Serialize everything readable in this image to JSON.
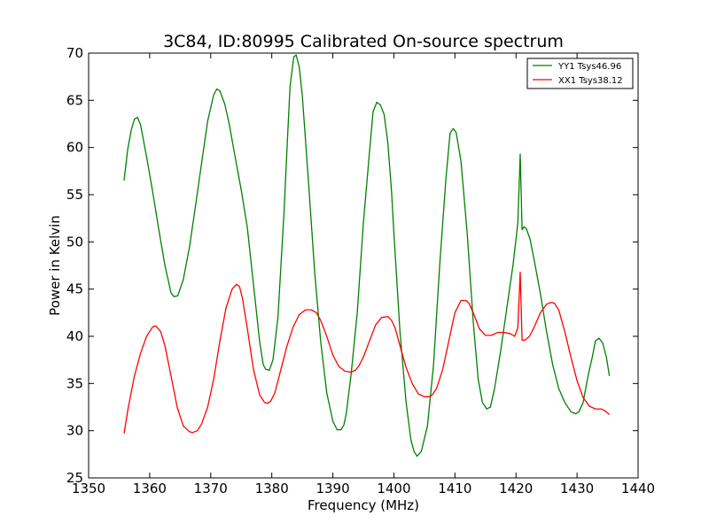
{
  "chart_data": {
    "type": "line",
    "title": "3C84, ID:80995 Calibrated On-source spectrum",
    "xlabel": "Frequency (MHz)",
    "ylabel": "Power in Kelvin",
    "xlim": [
      1350,
      1440
    ],
    "ylim": [
      25,
      70
    ],
    "xticks": [
      "1350",
      "1360",
      "1370",
      "1380",
      "1390",
      "1400",
      "1410",
      "1420",
      "1430",
      "1440"
    ],
    "yticks": [
      "25",
      "30",
      "35",
      "40",
      "45",
      "50",
      "55",
      "60",
      "65",
      "70"
    ],
    "grid": false,
    "legend_position": "upper-right",
    "series": [
      {
        "name": "YY1 Tsys46.96",
        "color": "#008000",
        "x": [
          1355.8,
          1356.4,
          1357.0,
          1357.5,
          1358.0,
          1358.5,
          1359.5,
          1360.5,
          1361.5,
          1362.5,
          1363.5,
          1364.0,
          1364.6,
          1365.5,
          1366.5,
          1367.5,
          1368.5,
          1369.5,
          1370.5,
          1371.0,
          1371.5,
          1372.3,
          1373.0,
          1374.0,
          1375.0,
          1376.0,
          1377.0,
          1378.0,
          1378.6,
          1379.0,
          1379.6,
          1380.2,
          1381.0,
          1382.0,
          1382.5,
          1383.0,
          1383.6,
          1384.0,
          1384.5,
          1385.0,
          1386.0,
          1387.0,
          1388.0,
          1389.0,
          1390.0,
          1390.7,
          1391.3,
          1391.8,
          1392.2,
          1393.0,
          1394.0,
          1395.0,
          1396.0,
          1396.6,
          1397.2,
          1397.8,
          1398.4,
          1399.0,
          1399.6,
          1400.0,
          1401.0,
          1402.0,
          1402.8,
          1403.3,
          1403.8,
          1404.5,
          1405.5,
          1406.5,
          1407.5,
          1408.5,
          1409.2,
          1409.7,
          1410.2,
          1411.0,
          1412.0,
          1413.0,
          1413.8,
          1414.5,
          1415.2,
          1415.8,
          1416.5,
          1417.5,
          1418.5,
          1419.5,
          1420.3,
          1420.7,
          1421.0,
          1421.3,
          1421.7,
          1422.3,
          1423.0,
          1424.0,
          1425.0,
          1426.0,
          1427.0,
          1428.0,
          1429.0,
          1429.8,
          1430.3,
          1431.0,
          1431.8,
          1432.5,
          1433.0,
          1433.6,
          1434.2,
          1434.8,
          1435.3
        ],
        "y": [
          56.5,
          59.8,
          61.9,
          63.0,
          63.2,
          62.4,
          59.0,
          55.3,
          51.3,
          47.5,
          44.6,
          44.2,
          44.3,
          46.0,
          49.4,
          53.8,
          58.3,
          62.8,
          65.6,
          66.2,
          66.0,
          64.6,
          62.6,
          59.0,
          55.5,
          51.5,
          45.5,
          39.5,
          37.0,
          36.5,
          36.4,
          37.5,
          42.0,
          53.0,
          60.0,
          66.5,
          69.6,
          69.8,
          68.5,
          65.5,
          56.5,
          47.0,
          39.5,
          34.0,
          31.0,
          30.1,
          30.1,
          30.6,
          31.8,
          36.0,
          42.5,
          52.0,
          59.5,
          63.8,
          64.8,
          64.5,
          63.5,
          60.5,
          55.5,
          51.0,
          40.5,
          33.0,
          29.0,
          27.8,
          27.3,
          27.8,
          30.5,
          37.0,
          47.5,
          56.5,
          61.5,
          62.0,
          61.6,
          58.5,
          51.0,
          41.5,
          35.5,
          33.0,
          32.3,
          32.5,
          34.5,
          38.5,
          43.0,
          47.5,
          52.0,
          59.3,
          51.3,
          51.6,
          51.4,
          50.3,
          48.0,
          44.5,
          40.5,
          37.0,
          34.5,
          33.0,
          32.0,
          31.8,
          32.0,
          33.0,
          35.8,
          37.8,
          39.5,
          39.8,
          39.3,
          37.8,
          35.8
        ]
      },
      {
        "name": "XX1 Tsys38.12",
        "color": "#ff0000",
        "x": [
          1355.8,
          1356.5,
          1357.5,
          1358.5,
          1359.5,
          1360.5,
          1361.0,
          1361.8,
          1362.5,
          1363.5,
          1364.5,
          1365.5,
          1366.5,
          1367.0,
          1367.8,
          1368.5,
          1369.5,
          1370.5,
          1371.5,
          1372.5,
          1373.5,
          1374.2,
          1374.7,
          1375.2,
          1376.0,
          1377.0,
          1378.0,
          1378.8,
          1379.3,
          1379.8,
          1380.5,
          1381.5,
          1382.5,
          1383.5,
          1384.5,
          1385.5,
          1386.5,
          1387.3,
          1388.0,
          1389.0,
          1390.0,
          1391.0,
          1392.0,
          1393.0,
          1393.7,
          1394.3,
          1395.0,
          1396.0,
          1397.0,
          1398.0,
          1399.0,
          1399.6,
          1400.2,
          1401.0,
          1402.0,
          1403.0,
          1404.0,
          1405.0,
          1405.8,
          1406.3,
          1407.0,
          1408.0,
          1409.0,
          1410.0,
          1411.0,
          1411.8,
          1412.3,
          1413.0,
          1414.0,
          1415.0,
          1416.0,
          1417.0,
          1418.0,
          1419.0,
          1419.8,
          1420.3,
          1420.7,
          1421.0,
          1421.5,
          1422.2,
          1423.0,
          1424.0,
          1425.0,
          1425.8,
          1426.3,
          1427.0,
          1428.0,
          1429.0,
          1430.0,
          1431.0,
          1432.0,
          1433.0,
          1434.0,
          1434.6,
          1435.3
        ],
        "y": [
          29.7,
          32.5,
          35.8,
          38.2,
          40.0,
          41.0,
          41.1,
          40.5,
          39.0,
          35.8,
          32.5,
          30.5,
          29.9,
          29.8,
          30.0,
          30.7,
          32.5,
          35.5,
          39.5,
          43.0,
          45.0,
          45.5,
          45.3,
          44.0,
          40.8,
          36.5,
          33.8,
          33.0,
          32.9,
          33.1,
          34.0,
          36.5,
          39.0,
          41.0,
          42.3,
          42.8,
          42.8,
          42.5,
          41.7,
          40.0,
          38.0,
          36.8,
          36.3,
          36.2,
          36.4,
          36.9,
          37.8,
          39.5,
          41.2,
          42.0,
          42.1,
          41.7,
          40.9,
          39.0,
          36.7,
          35.0,
          33.9,
          33.6,
          33.6,
          33.8,
          34.5,
          36.5,
          39.5,
          42.5,
          43.8,
          43.8,
          43.5,
          42.5,
          40.8,
          40.1,
          40.1,
          40.4,
          40.4,
          40.3,
          40.0,
          40.9,
          46.8,
          39.6,
          39.6,
          40.0,
          41.0,
          42.5,
          43.4,
          43.6,
          43.5,
          42.8,
          40.5,
          37.8,
          35.3,
          33.5,
          32.6,
          32.3,
          32.3,
          32.1,
          31.7
        ]
      }
    ]
  }
}
